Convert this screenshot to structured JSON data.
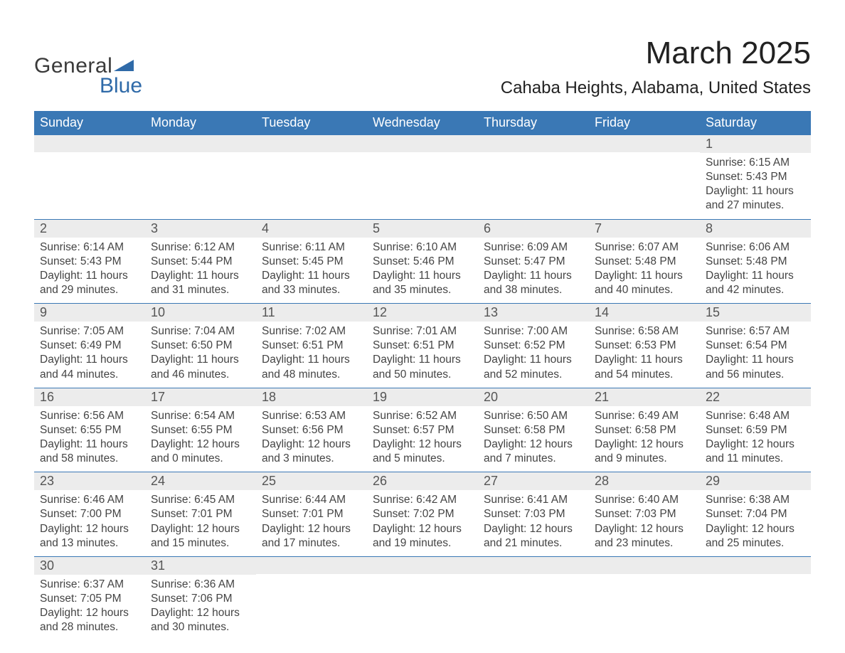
{
  "brand": {
    "name1": "General",
    "name2": "Blue",
    "accent_color": "#2f6aa8"
  },
  "header": {
    "month_title": "March 2025",
    "location": "Cahaba Heights, Alabama, United States"
  },
  "colors": {
    "header_bg": "#3a78b5",
    "header_text": "#ffffff",
    "daynum_bg": "#ececec",
    "row_border": "#3a78b5",
    "body_text": "#444444",
    "page_bg": "#ffffff"
  },
  "typography": {
    "month_title_fontsize": 44,
    "location_fontsize": 24,
    "weekday_fontsize": 18,
    "daynum_fontsize": 18,
    "detail_fontsize": 15.5
  },
  "calendar": {
    "weekdays": [
      "Sunday",
      "Monday",
      "Tuesday",
      "Wednesday",
      "Thursday",
      "Friday",
      "Saturday"
    ],
    "weeks": [
      [
        null,
        null,
        null,
        null,
        null,
        null,
        {
          "day": "1",
          "sunrise": "6:15 AM",
          "sunset": "5:43 PM",
          "daylight": "11 hours and 27 minutes."
        }
      ],
      [
        {
          "day": "2",
          "sunrise": "6:14 AM",
          "sunset": "5:43 PM",
          "daylight": "11 hours and 29 minutes."
        },
        {
          "day": "3",
          "sunrise": "6:12 AM",
          "sunset": "5:44 PM",
          "daylight": "11 hours and 31 minutes."
        },
        {
          "day": "4",
          "sunrise": "6:11 AM",
          "sunset": "5:45 PM",
          "daylight": "11 hours and 33 minutes."
        },
        {
          "day": "5",
          "sunrise": "6:10 AM",
          "sunset": "5:46 PM",
          "daylight": "11 hours and 35 minutes."
        },
        {
          "day": "6",
          "sunrise": "6:09 AM",
          "sunset": "5:47 PM",
          "daylight": "11 hours and 38 minutes."
        },
        {
          "day": "7",
          "sunrise": "6:07 AM",
          "sunset": "5:48 PM",
          "daylight": "11 hours and 40 minutes."
        },
        {
          "day": "8",
          "sunrise": "6:06 AM",
          "sunset": "5:48 PM",
          "daylight": "11 hours and 42 minutes."
        }
      ],
      [
        {
          "day": "9",
          "sunrise": "7:05 AM",
          "sunset": "6:49 PM",
          "daylight": "11 hours and 44 minutes."
        },
        {
          "day": "10",
          "sunrise": "7:04 AM",
          "sunset": "6:50 PM",
          "daylight": "11 hours and 46 minutes."
        },
        {
          "day": "11",
          "sunrise": "7:02 AM",
          "sunset": "6:51 PM",
          "daylight": "11 hours and 48 minutes."
        },
        {
          "day": "12",
          "sunrise": "7:01 AM",
          "sunset": "6:51 PM",
          "daylight": "11 hours and 50 minutes."
        },
        {
          "day": "13",
          "sunrise": "7:00 AM",
          "sunset": "6:52 PM",
          "daylight": "11 hours and 52 minutes."
        },
        {
          "day": "14",
          "sunrise": "6:58 AM",
          "sunset": "6:53 PM",
          "daylight": "11 hours and 54 minutes."
        },
        {
          "day": "15",
          "sunrise": "6:57 AM",
          "sunset": "6:54 PM",
          "daylight": "11 hours and 56 minutes."
        }
      ],
      [
        {
          "day": "16",
          "sunrise": "6:56 AM",
          "sunset": "6:55 PM",
          "daylight": "11 hours and 58 minutes."
        },
        {
          "day": "17",
          "sunrise": "6:54 AM",
          "sunset": "6:55 PM",
          "daylight": "12 hours and 0 minutes."
        },
        {
          "day": "18",
          "sunrise": "6:53 AM",
          "sunset": "6:56 PM",
          "daylight": "12 hours and 3 minutes."
        },
        {
          "day": "19",
          "sunrise": "6:52 AM",
          "sunset": "6:57 PM",
          "daylight": "12 hours and 5 minutes."
        },
        {
          "day": "20",
          "sunrise": "6:50 AM",
          "sunset": "6:58 PM",
          "daylight": "12 hours and 7 minutes."
        },
        {
          "day": "21",
          "sunrise": "6:49 AM",
          "sunset": "6:58 PM",
          "daylight": "12 hours and 9 minutes."
        },
        {
          "day": "22",
          "sunrise": "6:48 AM",
          "sunset": "6:59 PM",
          "daylight": "12 hours and 11 minutes."
        }
      ],
      [
        {
          "day": "23",
          "sunrise": "6:46 AM",
          "sunset": "7:00 PM",
          "daylight": "12 hours and 13 minutes."
        },
        {
          "day": "24",
          "sunrise": "6:45 AM",
          "sunset": "7:01 PM",
          "daylight": "12 hours and 15 minutes."
        },
        {
          "day": "25",
          "sunrise": "6:44 AM",
          "sunset": "7:01 PM",
          "daylight": "12 hours and 17 minutes."
        },
        {
          "day": "26",
          "sunrise": "6:42 AM",
          "sunset": "7:02 PM",
          "daylight": "12 hours and 19 minutes."
        },
        {
          "day": "27",
          "sunrise": "6:41 AM",
          "sunset": "7:03 PM",
          "daylight": "12 hours and 21 minutes."
        },
        {
          "day": "28",
          "sunrise": "6:40 AM",
          "sunset": "7:03 PM",
          "daylight": "12 hours and 23 minutes."
        },
        {
          "day": "29",
          "sunrise": "6:38 AM",
          "sunset": "7:04 PM",
          "daylight": "12 hours and 25 minutes."
        }
      ],
      [
        {
          "day": "30",
          "sunrise": "6:37 AM",
          "sunset": "7:05 PM",
          "daylight": "12 hours and 28 minutes."
        },
        {
          "day": "31",
          "sunrise": "6:36 AM",
          "sunset": "7:06 PM",
          "daylight": "12 hours and 30 minutes."
        },
        null,
        null,
        null,
        null,
        null
      ]
    ],
    "labels": {
      "sunrise": "Sunrise:",
      "sunset": "Sunset:",
      "daylight": "Daylight:"
    }
  }
}
